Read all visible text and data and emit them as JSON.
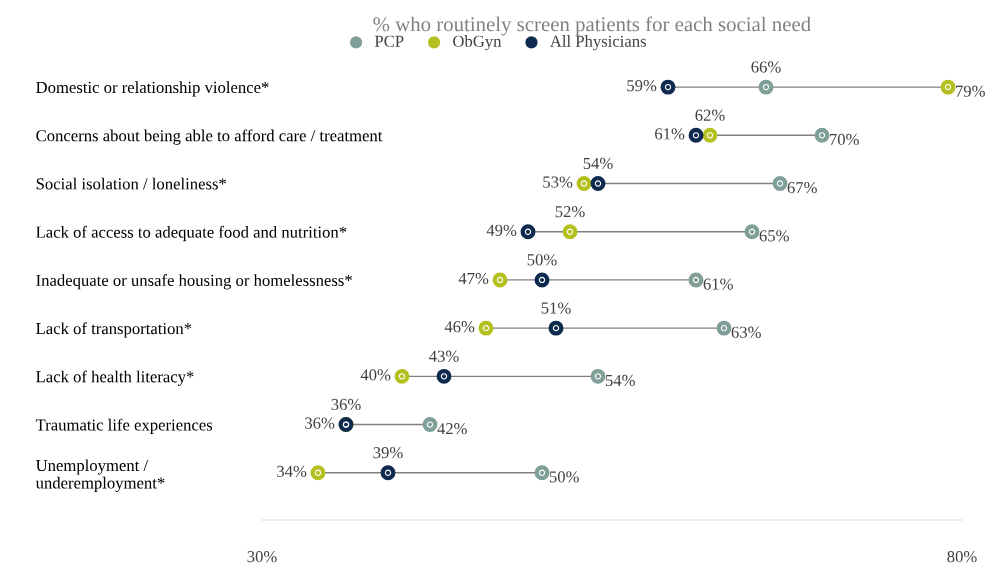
{
  "chart_data": {
    "type": "scatter",
    "orientation": "horizontal",
    "title": "% who routinely screen patients for each social need",
    "categories": [
      "Domestic or relationship violence*",
      "Concerns about being able to afford care / treatment",
      "Social isolation / loneliness*",
      "Lack of access to adequate food and nutrition*",
      "Inadequate or unsafe housing or homelessness*",
      "Lack of transportation*",
      "Lack of health literacy*",
      "Traumatic life experiences",
      "Unemployment /\nunderemployment*"
    ],
    "series": [
      {
        "name": "PCP",
        "color": "#7f9f98",
        "values": [
          66,
          70,
          67,
          65,
          61,
          63,
          54,
          42,
          50
        ],
        "value_labels": [
          "66%",
          "70%",
          "67%",
          "65%",
          "61%",
          "63%",
          "54%",
          "42%",
          "50%"
        ]
      },
      {
        "name": "ObGyn",
        "color": "#b5c020",
        "values": [
          79,
          62,
          53,
          52,
          47,
          46,
          40,
          36,
          34
        ],
        "value_labels": [
          "79%",
          "62%",
          "53%",
          "52%",
          "47%",
          "46%",
          "40%",
          "36%",
          "34%"
        ]
      },
      {
        "name": "All Physicians",
        "color": "#0e2a4f",
        "values": [
          59,
          61,
          54,
          49,
          50,
          51,
          43,
          36,
          39
        ],
        "value_labels": [
          "59%",
          "61%",
          "54%",
          "49%",
          "50%",
          "51%",
          "43%",
          "36%",
          "39%"
        ]
      }
    ],
    "xlim": [
      30,
      80
    ],
    "xticks": [
      {
        "value": 30,
        "label": "30%"
      },
      {
        "value": 80,
        "label": "80%"
      }
    ],
    "legend": "top",
    "marker": "circle",
    "grid": false
  }
}
